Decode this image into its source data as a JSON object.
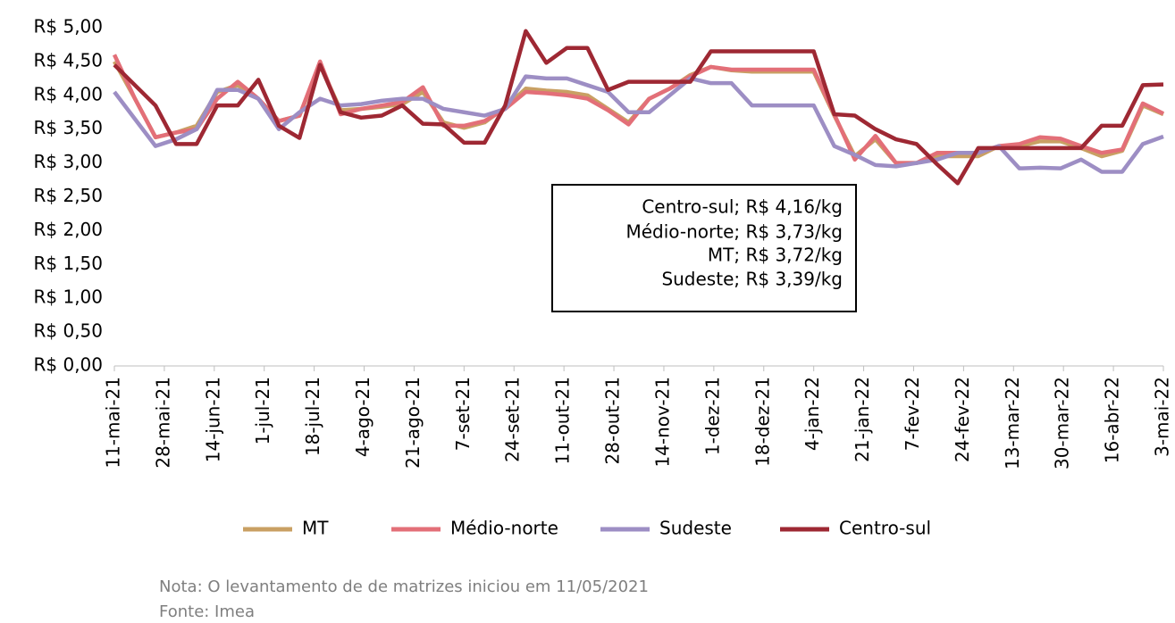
{
  "chart_data": {
    "type": "line",
    "x": [
      "2021-05-11",
      "2021-05-18",
      "2021-05-25",
      "2021-06-01",
      "2021-06-08",
      "2021-06-15",
      "2021-06-22",
      "2021-06-29",
      "2021-07-06",
      "2021-07-13",
      "2021-07-20",
      "2021-07-27",
      "2021-08-03",
      "2021-08-10",
      "2021-08-17",
      "2021-08-24",
      "2021-08-31",
      "2021-09-07",
      "2021-09-14",
      "2021-09-21",
      "2021-09-28",
      "2021-10-05",
      "2021-10-12",
      "2021-10-19",
      "2021-10-26",
      "2021-11-02",
      "2021-11-09",
      "2021-11-16",
      "2021-11-23",
      "2021-11-30",
      "2021-12-07",
      "2021-12-14",
      "2021-12-21",
      "2021-12-28",
      "2022-01-04",
      "2022-01-11",
      "2022-01-18",
      "2022-01-25",
      "2022-02-01",
      "2022-02-08",
      "2022-02-15",
      "2022-02-22",
      "2022-03-01",
      "2022-03-08",
      "2022-03-15",
      "2022-03-22",
      "2022-03-29",
      "2022-04-05",
      "2022-04-12",
      "2022-04-19",
      "2022-04-26",
      "2022-05-03"
    ],
    "series": [
      {
        "name": "MT",
        "color": "#c9a063",
        "values": [
          4.5,
          3.95,
          3.38,
          3.45,
          3.55,
          4.05,
          4.15,
          3.95,
          3.62,
          3.7,
          4.45,
          3.78,
          3.8,
          3.83,
          3.87,
          4.05,
          3.6,
          3.52,
          3.6,
          3.82,
          4.1,
          4.07,
          4.05,
          4.0,
          3.8,
          3.6,
          3.95,
          4.1,
          4.3,
          4.42,
          4.37,
          4.35,
          4.35,
          4.35,
          4.35,
          3.7,
          3.1,
          3.35,
          3.0,
          3.0,
          3.1,
          3.1,
          3.1,
          3.25,
          3.25,
          3.32,
          3.32,
          3.22,
          3.1,
          3.18,
          3.85,
          3.72
        ]
      },
      {
        "name": "Médio-norte",
        "color": "#e36f78",
        "values": [
          4.6,
          3.95,
          3.38,
          3.45,
          3.5,
          3.95,
          4.2,
          3.95,
          3.62,
          3.7,
          4.5,
          3.72,
          3.8,
          3.85,
          3.9,
          4.12,
          3.55,
          3.55,
          3.62,
          3.8,
          4.05,
          4.03,
          4.0,
          3.95,
          3.78,
          3.57,
          3.95,
          4.1,
          4.28,
          4.42,
          4.38,
          4.38,
          4.38,
          4.38,
          4.38,
          3.72,
          3.05,
          3.4,
          3.0,
          3.0,
          3.15,
          3.15,
          3.15,
          3.25,
          3.28,
          3.38,
          3.36,
          3.25,
          3.15,
          3.2,
          3.88,
          3.73
        ]
      },
      {
        "name": "Sudeste",
        "color": "#9d8ec4",
        "values": [
          4.05,
          3.65,
          3.25,
          3.35,
          3.5,
          4.08,
          4.08,
          3.95,
          3.5,
          3.75,
          3.95,
          3.85,
          3.87,
          3.92,
          3.95,
          3.95,
          3.8,
          3.75,
          3.7,
          3.8,
          4.28,
          4.25,
          4.25,
          4.15,
          4.05,
          3.75,
          3.75,
          4.0,
          4.25,
          4.18,
          4.18,
          3.85,
          3.85,
          3.85,
          3.85,
          3.25,
          3.12,
          2.97,
          2.95,
          3.0,
          3.05,
          3.15,
          3.15,
          3.25,
          2.92,
          2.93,
          2.92,
          3.05,
          2.87,
          2.87,
          3.28,
          3.39
        ]
      },
      {
        "name": "Centro-sul",
        "color": "#9e2833",
        "values": [
          4.45,
          4.15,
          3.85,
          3.28,
          3.28,
          3.85,
          3.85,
          4.23,
          3.55,
          3.37,
          4.45,
          3.75,
          3.67,
          3.7,
          3.85,
          3.58,
          3.57,
          3.3,
          3.3,
          3.85,
          4.95,
          4.48,
          4.7,
          4.7,
          4.08,
          4.2,
          4.2,
          4.2,
          4.2,
          4.65,
          4.65,
          4.65,
          4.65,
          4.65,
          4.65,
          3.72,
          3.7,
          3.5,
          3.35,
          3.28,
          2.98,
          2.7,
          3.22,
          3.22,
          3.22,
          3.22,
          3.22,
          3.22,
          3.55,
          3.55,
          4.15,
          4.16
        ]
      }
    ],
    "xlim": [
      "2021-05-11",
      "2022-05-03"
    ],
    "xticks": [
      {
        "value": "2021-05-11",
        "label": "11-mai-21"
      },
      {
        "value": "2021-05-28",
        "label": "28-mai-21"
      },
      {
        "value": "2021-06-14",
        "label": "14-jun-21"
      },
      {
        "value": "2021-07-01",
        "label": "1-jul-21"
      },
      {
        "value": "2021-07-18",
        "label": "18-jul-21"
      },
      {
        "value": "2021-08-04",
        "label": "4-ago-21"
      },
      {
        "value": "2021-08-21",
        "label": "21-ago-21"
      },
      {
        "value": "2021-09-07",
        "label": "7-set-21"
      },
      {
        "value": "2021-09-24",
        "label": "24-set-21"
      },
      {
        "value": "2021-10-11",
        "label": "11-out-21"
      },
      {
        "value": "2021-10-28",
        "label": "28-out-21"
      },
      {
        "value": "2021-11-14",
        "label": "14-nov-21"
      },
      {
        "value": "2021-12-01",
        "label": "1-dez-21"
      },
      {
        "value": "2021-12-18",
        "label": "18-dez-21"
      },
      {
        "value": "2022-01-04",
        "label": "4-jan-22"
      },
      {
        "value": "2022-01-21",
        "label": "21-jan-22"
      },
      {
        "value": "2022-02-07",
        "label": "7-fev-22"
      },
      {
        "value": "2022-02-24",
        "label": "24-fev-22"
      },
      {
        "value": "2022-03-13",
        "label": "13-mar-22"
      },
      {
        "value": "2022-03-30",
        "label": "30-mar-22"
      },
      {
        "value": "2022-04-16",
        "label": "16-abr-22"
      },
      {
        "value": "2022-05-03",
        "label": "3-mai-22"
      }
    ],
    "ylim": [
      0,
      5
    ],
    "yticks": [
      {
        "value": 0,
        "label": "R$ 0,00"
      },
      {
        "value": 0.5,
        "label": "R$ 0,50"
      },
      {
        "value": 1,
        "label": "R$ 1,00"
      },
      {
        "value": 1.5,
        "label": "R$ 1,50"
      },
      {
        "value": 2,
        "label": "R$ 2,00"
      },
      {
        "value": 2.5,
        "label": "R$ 2,50"
      },
      {
        "value": 3,
        "label": "R$ 3,00"
      },
      {
        "value": 3.5,
        "label": "R$ 3,50"
      },
      {
        "value": 4,
        "label": "R$ 4,00"
      },
      {
        "value": 4.5,
        "label": "R$ 4,50"
      },
      {
        "value": 5,
        "label": "R$ 5,00"
      }
    ],
    "annotation": [
      "Centro-sul; R$ 4,16/kg",
      "Médio-norte; R$ 3,73/kg",
      "MT; R$ 3,72/kg",
      "Sudeste; R$ 3,39/kg"
    ],
    "note": "Nota: O levantamento de de matrizes iniciou em 11/05/2021",
    "source": "Fonte: Imea"
  }
}
